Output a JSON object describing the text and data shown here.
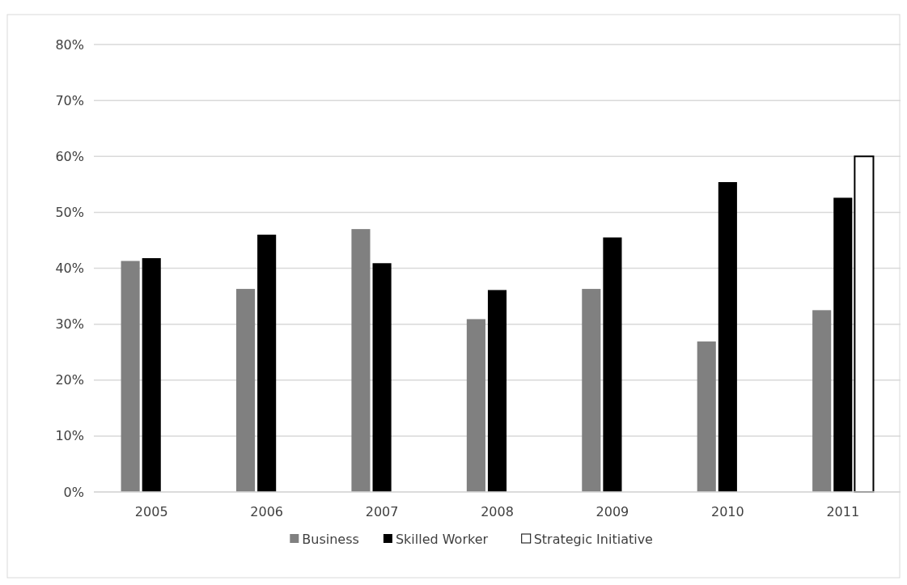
{
  "chart_data": {
    "type": "bar",
    "categories": [
      "2005",
      "2006",
      "2007",
      "2008",
      "2009",
      "2010",
      "2011"
    ],
    "series": [
      {
        "name": "Business",
        "color": "#808080",
        "values": [
          41.3,
          36.3,
          47,
          30.9,
          36.3,
          26.9,
          32.5
        ]
      },
      {
        "name": "Skilled Worker",
        "color": "#000000",
        "values": [
          41.8,
          46,
          40.9,
          36.1,
          45.5,
          55.4,
          52.6
        ]
      },
      {
        "name": "Strategic Initiative",
        "color": "#ffffff",
        "values": [
          null,
          null,
          null,
          null,
          null,
          null,
          60
        ]
      }
    ],
    "ylim": [
      0,
      80
    ],
    "yticks": [
      {
        "value": 0,
        "label": "0%"
      },
      {
        "value": 10,
        "label": "10%"
      },
      {
        "value": 20,
        "label": "20%"
      },
      {
        "value": 30,
        "label": "30%"
      },
      {
        "value": 40,
        "label": "40%"
      },
      {
        "value": 50,
        "label": "50%"
      },
      {
        "value": 60,
        "label": "60%"
      },
      {
        "value": 70,
        "label": "70%"
      },
      {
        "value": 80,
        "label": "80%"
      }
    ],
    "grid": "y",
    "legend": "bottom"
  }
}
